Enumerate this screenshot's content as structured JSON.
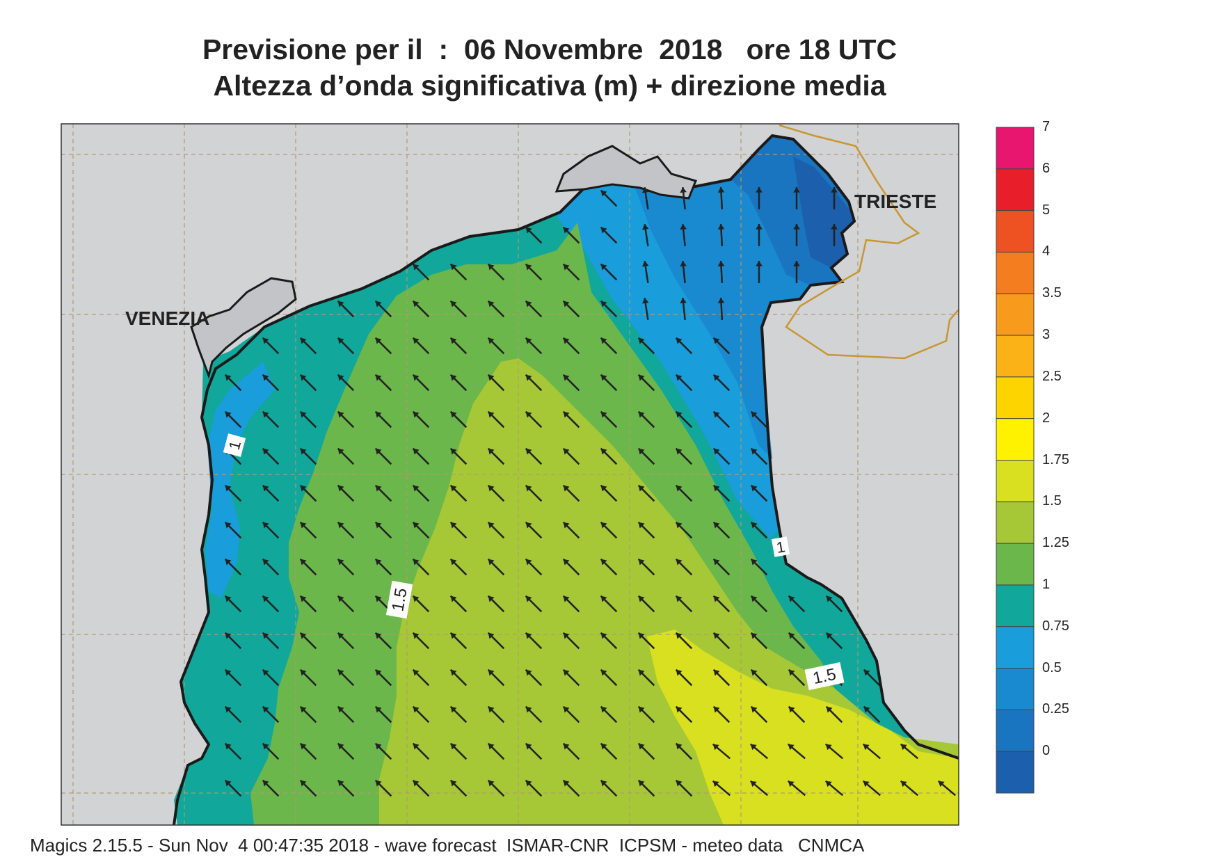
{
  "header": {
    "title_line1": "Previsione per il  :  06 Novembre  2018   ore 18 UTC",
    "title_line2": "Altezza d’onda significativa (m) + direzione media"
  },
  "map": {
    "cities": [
      {
        "name": "VENEZIA"
      },
      {
        "name": "TRIESTE"
      }
    ],
    "contour_labels": [
      "1",
      "1.5",
      "1",
      "1.5"
    ],
    "land_color": "#d2d3d5",
    "coast_color": "#1a1a1a",
    "border_color": "#c89632",
    "arrow_color": "#222222",
    "arrow_direction": "north-west",
    "grid": "dashed"
  },
  "colorbar": {
    "levels": [
      "7",
      "6",
      "5",
      "4",
      "3.5",
      "3",
      "2.5",
      "2",
      "1.75",
      "1.5",
      "1.25",
      "1",
      "0.75",
      "0.5",
      "0.25",
      "0"
    ],
    "colors": [
      "#e8166e",
      "#e91e2b",
      "#ee5122",
      "#f47d20",
      "#f89a1c",
      "#fbb216",
      "#fdd400",
      "#fff200",
      "#d8e01f",
      "#a6c837",
      "#6cb74b",
      "#11a79a",
      "#1a9ddb",
      "#1a8ad0",
      "#1a75c0",
      "#1c5fad"
    ]
  },
  "footer": {
    "text": "Magics 2.15.5 - Sun Nov  4 00:47:35 2018 - wave forecast  ISMAR-CNR  ICPSM - meteo data   CNMCA"
  }
}
